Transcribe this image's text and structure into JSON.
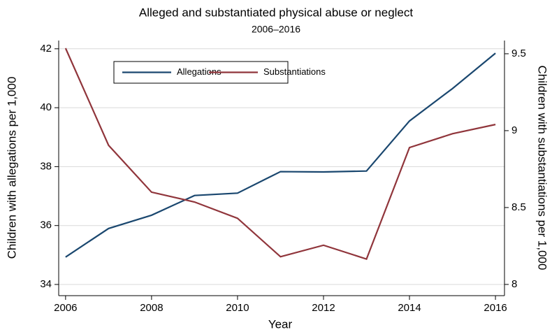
{
  "chart_data": {
    "type": "line",
    "title": "Alleged and substantiated physical abuse or neglect",
    "subtitle": "2006–2016",
    "x_label": "Year",
    "y_label": "Children with allegations per 1,000",
    "y2_label": "Children with substantiations per 1,000",
    "x": [
      2006,
      2007,
      2008,
      2009,
      2010,
      2011,
      2012,
      2013,
      2014,
      2015,
      2016
    ],
    "xlim": [
      2005.84,
      2016.21
    ],
    "xticks": [
      2006,
      2008,
      2010,
      2012,
      2014,
      2016
    ],
    "ylim": [
      33.62,
      42.28
    ],
    "yticks": [
      34,
      36,
      38,
      40,
      42
    ],
    "y2lim": [
      7.927,
      9.586
    ],
    "y2ticks": [
      8,
      8.5,
      9,
      9.5
    ],
    "grid": true,
    "legend": "top",
    "series": [
      {
        "name": "Allegations",
        "color": "#1a476f",
        "values": [
          34.93,
          35.9,
          36.35,
          37.02,
          37.1,
          37.83,
          37.82,
          37.85,
          39.55,
          40.65,
          41.85
        ]
      },
      {
        "name": "Substantiations",
        "color": "#90353b",
        "axis": "y2",
        "values": [
          9.536,
          8.905,
          8.6,
          8.536,
          8.43,
          8.18,
          8.255,
          8.165,
          8.89,
          8.98,
          9.04
        ]
      }
    ]
  }
}
